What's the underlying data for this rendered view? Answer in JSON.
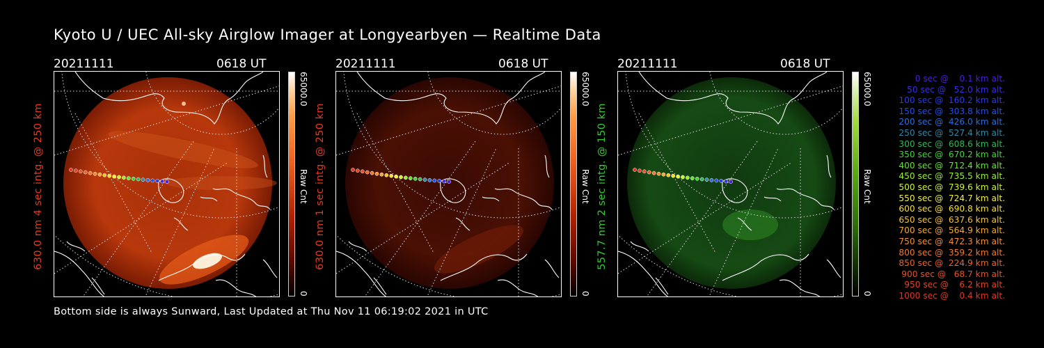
{
  "title": "Kyoto U / UEC All-sky Airglow Imager at Longyearbyen — Realtime Data",
  "footer": "Bottom side is always Sunward, Last Updated at Thu Nov 11 06:19:02 2021 in UTC",
  "panels": [
    {
      "date": "20211111",
      "time": "0618 UT",
      "label": "630.0 nm 4 sec intg. @ 250 km",
      "label_color": "#e63a1e",
      "cb_max": "65000.0",
      "cb_unit": "Raw Cnt",
      "cb_min": "0",
      "colormap": "red",
      "intensity": "strong"
    },
    {
      "date": "20211111",
      "time": "0618 UT",
      "label": "630.0 nm 1 sec intg. @ 250 km",
      "label_color": "#e63a1e",
      "cb_max": "65000.0",
      "cb_unit": "Raw Cnt",
      "cb_min": "0",
      "colormap": "red",
      "intensity": "weak"
    },
    {
      "date": "20211111",
      "time": "0618 UT",
      "label": "557.7 nm 2 sec intg. @ 150 km",
      "label_color": "#33cc33",
      "cb_max": "65000.0",
      "cb_unit": "Raw Cnt",
      "cb_min": "0",
      "colormap": "green",
      "intensity": "green"
    }
  ],
  "legend": [
    {
      "text": "0 sec @    0.1 km alt.",
      "color": "#4c1fd6"
    },
    {
      "text": "50 sec @   52.0 km alt.",
      "color": "#3a2ee8"
    },
    {
      "text": "100 sec @  160.2 km alt.",
      "color": "#2a3cf0"
    },
    {
      "text": "150 sec @  303.8 km alt.",
      "color": "#2250f0"
    },
    {
      "text": "200 sec @  426.0 km alt.",
      "color": "#2a6ee0"
    },
    {
      "text": "250 sec @  527.4 km alt.",
      "color": "#2f8aa8"
    },
    {
      "text": "300 sec @  608.6 km alt.",
      "color": "#31b85a"
    },
    {
      "text": "350 sec @  670.2 km alt.",
      "color": "#3fd83a"
    },
    {
      "text": "400 sec @  712.4 km alt.",
      "color": "#62e62d"
    },
    {
      "text": "450 sec @  735.5 km alt.",
      "color": "#9af02a"
    },
    {
      "text": "500 sec @  739.6 km alt.",
      "color": "#cff52c"
    },
    {
      "text": "550 sec @  724.7 km alt.",
      "color": "#f2f23a"
    },
    {
      "text": "600 sec @  690.8 km alt.",
      "color": "#f7e02e"
    },
    {
      "text": "650 sec @  637.6 km alt.",
      "color": "#f7c42a"
    },
    {
      "text": "700 sec @  564.9 km alt.",
      "color": "#f5a92a"
    },
    {
      "text": "750 sec @  472.3 km alt.",
      "color": "#f58f2a"
    },
    {
      "text": "800 sec @  359.2 km alt.",
      "color": "#f27a2a"
    },
    {
      "text": "850 sec @  224.9 km alt.",
      "color": "#ee6428"
    },
    {
      "text": "900 sec @   68.7 km alt.",
      "color": "#e85226"
    },
    {
      "text": "950 sec @    6.2 km alt.",
      "color": "#e44424"
    },
    {
      "text": "1000 sec @    0.4 km alt.",
      "color": "#e03822"
    }
  ],
  "chart_data": {
    "type": "table",
    "trajectory": {
      "time_sec": [
        0,
        50,
        100,
        150,
        200,
        250,
        300,
        350,
        400,
        450,
        500,
        550,
        600,
        650,
        700,
        750,
        800,
        850,
        900,
        950,
        1000
      ],
      "altitude_km": [
        0.1,
        52.0,
        160.2,
        303.8,
        426.0,
        527.4,
        608.6,
        670.2,
        712.4,
        735.5,
        739.6,
        724.7,
        690.8,
        637.6,
        564.9,
        472.3,
        359.2,
        224.9,
        68.7,
        6.2,
        0.4
      ]
    },
    "colorbar_range": [
      0,
      65000.0
    ]
  }
}
